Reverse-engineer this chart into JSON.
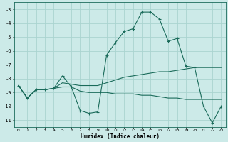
{
  "title": "",
  "xlabel": "Humidex (Indice chaleur)",
  "bg_color": "#cceae8",
  "grid_color": "#aad4d0",
  "line_color": "#1a6b5a",
  "xlim": [
    -0.5,
    23.5
  ],
  "ylim": [
    -11.5,
    -2.5
  ],
  "yticks": [
    -3,
    -4,
    -5,
    -6,
    -7,
    -8,
    -9,
    -10,
    -11
  ],
  "xticks": [
    0,
    1,
    2,
    3,
    4,
    5,
    6,
    7,
    8,
    9,
    10,
    11,
    12,
    13,
    14,
    15,
    16,
    17,
    18,
    19,
    20,
    21,
    22,
    23
  ],
  "series1_x": [
    0,
    1,
    2,
    3,
    4,
    5,
    6,
    7,
    8,
    9,
    10,
    11,
    12,
    13,
    14,
    15,
    16,
    17,
    18,
    19,
    20,
    21,
    22,
    23
  ],
  "series1_y": [
    -8.5,
    -9.4,
    -8.8,
    -8.8,
    -8.7,
    -7.8,
    -8.6,
    -10.3,
    -10.5,
    -10.4,
    -6.3,
    -5.4,
    -4.6,
    -4.4,
    -3.2,
    -3.2,
    -3.7,
    -5.3,
    -5.1,
    -7.1,
    -7.2,
    -10.0,
    -11.2,
    -10.0
  ],
  "series2_x": [
    0,
    1,
    2,
    3,
    4,
    5,
    6,
    7,
    8,
    9,
    10,
    11,
    12,
    13,
    14,
    15,
    16,
    17,
    18,
    19,
    20,
    21,
    22,
    23
  ],
  "series2_y": [
    -8.5,
    -9.4,
    -8.8,
    -8.8,
    -8.7,
    -8.3,
    -8.4,
    -8.5,
    -8.5,
    -8.5,
    -8.3,
    -8.1,
    -7.9,
    -7.8,
    -7.7,
    -7.6,
    -7.5,
    -7.5,
    -7.4,
    -7.3,
    -7.2,
    -7.2,
    -7.2,
    -7.2
  ],
  "series3_x": [
    0,
    1,
    2,
    3,
    4,
    5,
    6,
    7,
    8,
    9,
    10,
    11,
    12,
    13,
    14,
    15,
    16,
    17,
    18,
    19,
    20,
    21,
    22,
    23
  ],
  "series3_y": [
    -8.5,
    -9.4,
    -8.8,
    -8.8,
    -8.7,
    -8.6,
    -8.6,
    -8.9,
    -9.0,
    -9.0,
    -9.0,
    -9.1,
    -9.1,
    -9.1,
    -9.2,
    -9.2,
    -9.3,
    -9.4,
    -9.4,
    -9.5,
    -9.5,
    -9.5,
    -9.5,
    -9.5
  ]
}
